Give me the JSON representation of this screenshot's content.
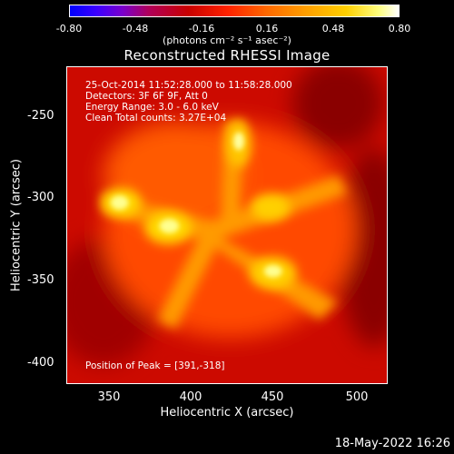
{
  "colorbar": {
    "ticks": [
      "-0.80",
      "-0.48",
      "-0.16",
      "0.16",
      "0.48",
      "0.80"
    ],
    "units": "(photons cm⁻² s⁻¹ asec⁻²)"
  },
  "title": "Reconstructed RHESSI Image",
  "info": {
    "time": "25-Oct-2014 11:52:28.000 to 11:58:28.000",
    "detectors": "Detectors: 3F 6F 9F, Att 0",
    "energy": "Energy Range: 3.0 - 6.0 keV",
    "clean": "Clean    Total counts: 3.27E+04",
    "peak": "Position of Peak = [391,-318]"
  },
  "timestamp": "18-May-2022 16:26",
  "chart_data": {
    "type": "heatmap",
    "title": "Reconstructed RHESSI Image",
    "xlabel": "Heliocentric X (arcsec)",
    "ylabel": "Heliocentric Y (arcsec)",
    "xlim": [
      325,
      518
    ],
    "ylim": [
      -412,
      -222
    ],
    "x_ticks": [
      "350",
      "400",
      "450",
      "500"
    ],
    "y_ticks": [
      "-250",
      "-300",
      "-350",
      "-400"
    ],
    "colorbar_range": [
      -0.8,
      0.8
    ],
    "peak_position": [
      391,
      -318
    ]
  }
}
